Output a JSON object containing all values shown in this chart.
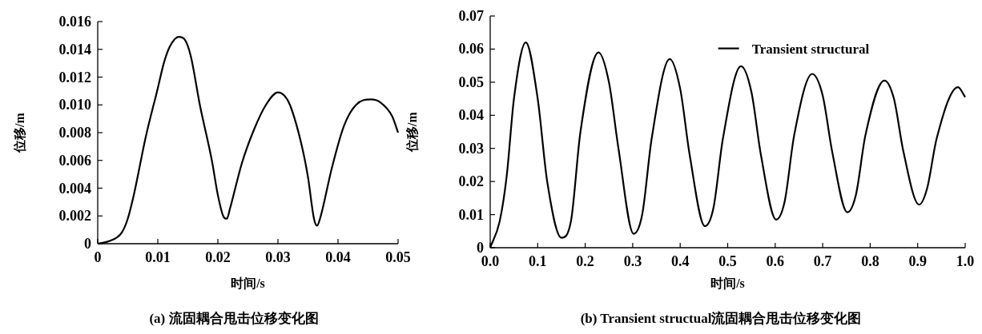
{
  "chart_data": [
    {
      "type": "line",
      "xlabel": "时间/s",
      "ylabel": "位移/m",
      "legend": false,
      "xlim": [
        0,
        0.05
      ],
      "ylim": [
        0,
        0.016
      ],
      "xticks": [
        0,
        0.01,
        0.02,
        0.03,
        0.04,
        0.05
      ],
      "yticks": [
        0,
        0.002,
        0.004,
        0.006,
        0.008,
        {
          "value": 0.01,
          "label": "0.010"
        },
        0.012,
        0.014,
        0.016
      ],
      "annotations": [
        "(a) 流固耦合甩击位移变化图"
      ],
      "series": [
        {
          "color": "#000000",
          "x": [
            0,
            0.002,
            0.004,
            0.005,
            0.006,
            0.008,
            0.01,
            0.011,
            0.012,
            0.0135,
            0.0145,
            0.0155,
            0.017,
            0.019,
            0.02,
            0.021,
            0.0215,
            0.022,
            0.024,
            0.026,
            0.028,
            0.03,
            0.031,
            0.032,
            0.034,
            0.035,
            0.036,
            0.0365,
            0.037,
            0.039,
            0.041,
            0.043,
            0.0455,
            0.047,
            0.049,
            0.05
          ],
          "values": [
            0,
            0.0002,
            0.0008,
            0.0018,
            0.0035,
            0.0077,
            0.0112,
            0.013,
            0.0142,
            0.0149,
            0.0147,
            0.0135,
            0.01,
            0.006,
            0.0035,
            0.0019,
            0.0018,
            0.0025,
            0.0058,
            0.0082,
            0.01,
            0.0109,
            0.0107,
            0.01,
            0.007,
            0.0048,
            0.0018,
            0.0013,
            0.0018,
            0.0055,
            0.0085,
            0.01,
            0.0104,
            0.0102,
            0.0092,
            0.008
          ]
        }
      ]
    },
    {
      "type": "line",
      "xlabel": "时间/s",
      "ylabel": "位移/m",
      "legend": "top",
      "xlim": [
        0,
        1
      ],
      "ylim": [
        0,
        0.07
      ],
      "xticks": [
        {
          "value": 0,
          "label": "0.0"
        },
        0.1,
        0.2,
        0.3,
        0.4,
        0.5,
        0.6,
        0.7,
        0.8,
        0.9,
        {
          "value": 1,
          "label": "1.0"
        }
      ],
      "yticks": [
        0,
        0.01,
        0.02,
        0.03,
        0.04,
        0.05,
        0.06,
        0.07
      ],
      "annotations": [
        "(b) Transient structual流固耦合甩击位移变化图"
      ],
      "series": [
        {
          "name": "Transient structural",
          "color": "#000000",
          "x": [
            0,
            0.02,
            0.035,
            0.05,
            0.075,
            0.1,
            0.12,
            0.15,
            0.17,
            0.19,
            0.228,
            0.25,
            0.27,
            0.302,
            0.32,
            0.34,
            0.378,
            0.4,
            0.42,
            0.452,
            0.47,
            0.49,
            0.528,
            0.55,
            0.57,
            0.602,
            0.62,
            0.64,
            0.678,
            0.7,
            0.72,
            0.752,
            0.77,
            0.79,
            0.83,
            0.85,
            0.87,
            0.903,
            0.92,
            0.94,
            0.985,
            1.0
          ],
          "values": [
            0,
            0.008,
            0.022,
            0.045,
            0.062,
            0.045,
            0.02,
            0.003,
            0.008,
            0.035,
            0.059,
            0.05,
            0.03,
            0.0042,
            0.01,
            0.033,
            0.057,
            0.048,
            0.028,
            0.0065,
            0.012,
            0.033,
            0.0548,
            0.047,
            0.028,
            0.0085,
            0.014,
            0.034,
            0.0525,
            0.046,
            0.029,
            0.0107,
            0.016,
            0.034,
            0.0505,
            0.045,
            0.029,
            0.013,
            0.018,
            0.033,
            0.0485,
            0.0455
          ]
        }
      ]
    }
  ]
}
